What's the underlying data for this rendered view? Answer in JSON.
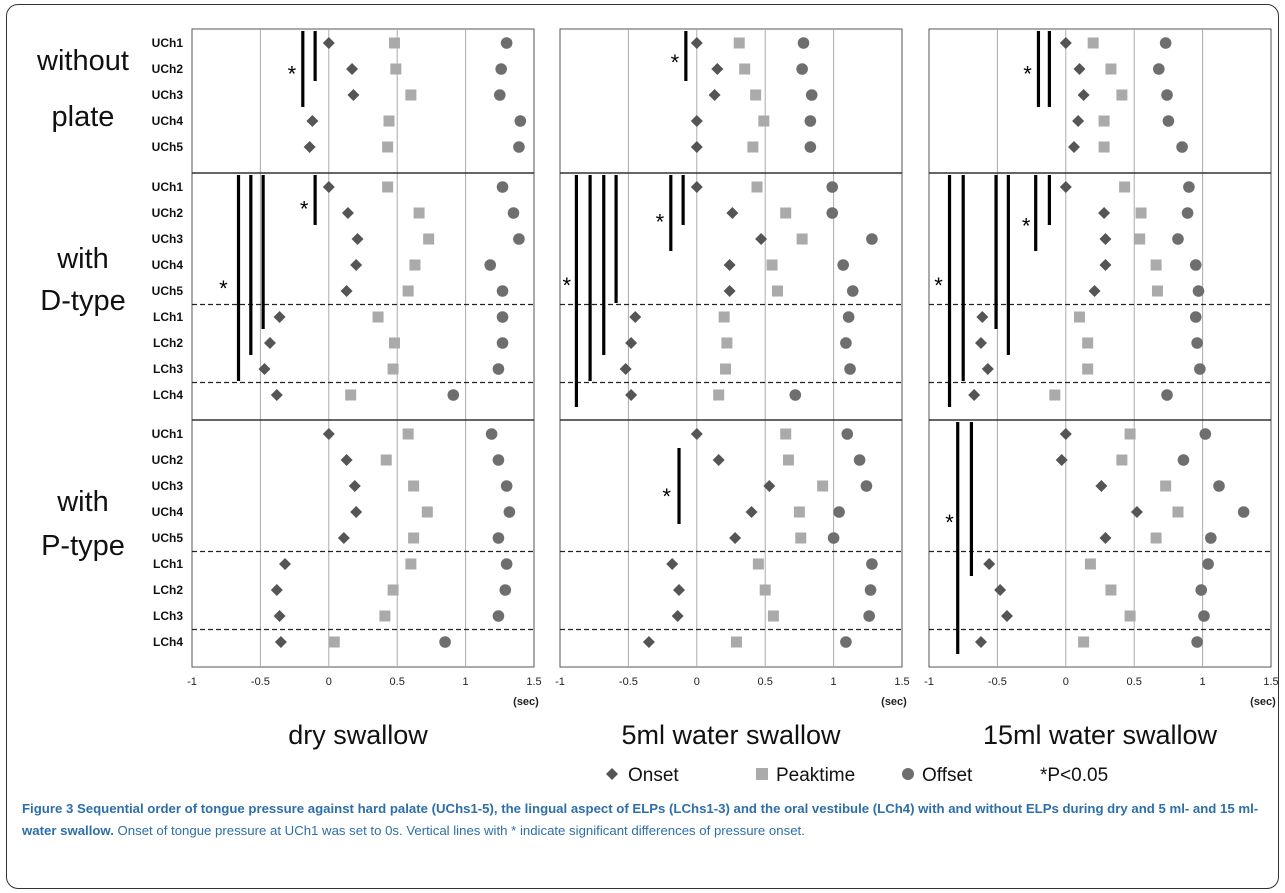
{
  "chart_data": {
    "type": "scatter",
    "x_unit": "(sec)",
    "xlim": [
      -1,
      1.5
    ],
    "x_ticks": [
      "-1",
      "-0.5",
      "0",
      "0.5",
      "1",
      "1.5"
    ],
    "x_tick_values": [
      -1,
      -0.5,
      0,
      0.5,
      1,
      1.5
    ],
    "columns": [
      {
        "id": "dry",
        "title": "dry swallow"
      },
      {
        "id": "w5",
        "title": "5ml water swallow"
      },
      {
        "id": "w15",
        "title": "15ml water swallow"
      }
    ],
    "rows": [
      {
        "id": "without",
        "label": [
          "without",
          "plate"
        ],
        "channels": [
          "UCh1",
          "UCh2",
          "UCh3",
          "UCh4",
          "UCh5"
        ],
        "dashed_after": []
      },
      {
        "id": "dtype",
        "label": [
          "with",
          "D-type"
        ],
        "channels": [
          "UCh1",
          "UCh2",
          "UCh3",
          "UCh4",
          "UCh5",
          "LCh1",
          "LCh2",
          "LCh3",
          "LCh4"
        ],
        "dashed_after": [
          4,
          7
        ]
      },
      {
        "id": "ptype",
        "label": [
          "with",
          "P-type"
        ],
        "channels": [
          "UCh1",
          "UCh2",
          "UCh3",
          "UCh4",
          "UCh5",
          "LCh1",
          "LCh2",
          "LCh3",
          "LCh4"
        ],
        "dashed_after": [
          4,
          7
        ]
      }
    ],
    "series": [
      {
        "name": "Onset",
        "marker": "diamond",
        "color": "#555555"
      },
      {
        "name": "Peaktime",
        "marker": "square",
        "color": "#aaaaaa"
      },
      {
        "name": "Offset",
        "marker": "circle",
        "color": "#6e6e6e"
      }
    ],
    "panels": [
      {
        "row": "without",
        "column": "dry",
        "onset": [
          0,
          0.17,
          0.18,
          -0.12,
          -0.14
        ],
        "peaktime": [
          0.48,
          0.49,
          0.6,
          0.44,
          0.43
        ],
        "offset": [
          1.3,
          1.26,
          1.25,
          1.4,
          1.39
        ],
        "sig_lines": [
          {
            "x": -0.19,
            "from": 0,
            "to": 2
          },
          {
            "x": -0.1,
            "from": 0,
            "to": 1
          }
        ],
        "star_after_x": -0.27,
        "star_row": 1.1
      },
      {
        "row": "without",
        "column": "w5",
        "onset": [
          0,
          0.15,
          0.13,
          0,
          0
        ],
        "peaktime": [
          0.31,
          0.35,
          0.43,
          0.49,
          0.41
        ],
        "offset": [
          0.78,
          0.77,
          0.84,
          0.83,
          0.83
        ],
        "sig_lines": [
          {
            "x": -0.08,
            "from": 0,
            "to": 1
          }
        ],
        "star_after_x": -0.16,
        "star_row": 0.65
      },
      {
        "row": "without",
        "column": "w15",
        "onset": [
          0,
          0.1,
          0.13,
          0.09,
          0.06
        ],
        "peaktime": [
          0.2,
          0.33,
          0.41,
          0.28,
          0.28
        ],
        "offset": [
          0.73,
          0.68,
          0.74,
          0.75,
          0.85
        ],
        "sig_lines": [
          {
            "x": -0.2,
            "from": 0,
            "to": 2
          },
          {
            "x": -0.12,
            "from": 0,
            "to": 2
          }
        ],
        "star_after_x": -0.28,
        "star_row": 1.1
      },
      {
        "row": "dtype",
        "column": "dry",
        "onset": [
          0,
          0.14,
          0.21,
          0.2,
          0.13,
          -0.36,
          -0.43,
          -0.47,
          -0.38
        ],
        "peaktime": [
          0.43,
          0.66,
          0.73,
          0.63,
          0.58,
          0.36,
          0.48,
          0.47,
          0.16
        ],
        "offset": [
          1.27,
          1.35,
          1.39,
          1.18,
          1.27,
          1.27,
          1.27,
          1.24,
          0.91
        ],
        "sig_lines": [
          {
            "x": -0.1,
            "from": 0,
            "to": 1
          },
          {
            "x": -0.48,
            "from": 0,
            "to": 5
          },
          {
            "x": -0.57,
            "from": 0,
            "to": 6
          },
          {
            "x": -0.66,
            "from": 0,
            "to": 7
          }
        ],
        "stars": [
          {
            "x": -0.18,
            "row": 0.75
          },
          {
            "x": -0.77,
            "row": 3.8
          }
        ]
      },
      {
        "row": "dtype",
        "column": "w5",
        "onset": [
          0,
          0.26,
          0.47,
          0.24,
          0.24,
          -0.45,
          -0.48,
          -0.52,
          -0.48
        ],
        "peaktime": [
          0.44,
          0.65,
          0.77,
          0.55,
          0.59,
          0.2,
          0.22,
          0.21,
          0.16
        ],
        "offset": [
          0.99,
          0.99,
          1.28,
          1.07,
          1.14,
          1.11,
          1.09,
          1.12,
          0.72
        ],
        "sig_lines": [
          {
            "x": -0.1,
            "from": 0,
            "to": 1
          },
          {
            "x": -0.19,
            "from": 0,
            "to": 2
          },
          {
            "x": -0.59,
            "from": 0,
            "to": 4
          },
          {
            "x": -0.68,
            "from": 0,
            "to": 6
          },
          {
            "x": -0.78,
            "from": 0,
            "to": 7
          },
          {
            "x": -0.88,
            "from": 0,
            "to": 8
          }
        ],
        "stars": [
          {
            "x": -0.27,
            "row": 1.25
          },
          {
            "x": -0.95,
            "row": 3.7
          }
        ]
      },
      {
        "row": "dtype",
        "column": "w15",
        "onset": [
          0,
          0.28,
          0.29,
          0.29,
          0.21,
          -0.61,
          -0.62,
          -0.57,
          -0.67
        ],
        "peaktime": [
          0.43,
          0.55,
          0.54,
          0.66,
          0.67,
          0.1,
          0.16,
          0.16,
          -0.08
        ],
        "offset": [
          0.9,
          0.89,
          0.82,
          0.95,
          0.97,
          0.95,
          0.96,
          0.98,
          0.74
        ],
        "sig_lines": [
          {
            "x": -0.12,
            "from": 0,
            "to": 1
          },
          {
            "x": -0.22,
            "from": 0,
            "to": 2
          },
          {
            "x": -0.42,
            "from": 0,
            "to": 6
          },
          {
            "x": -0.51,
            "from": 0,
            "to": 5
          },
          {
            "x": -0.75,
            "from": 0,
            "to": 7
          },
          {
            "x": -0.85,
            "from": 0,
            "to": 8
          }
        ],
        "stars": [
          {
            "x": -0.29,
            "row": 1.4
          },
          {
            "x": -0.93,
            "row": 3.7
          }
        ]
      },
      {
        "row": "ptype",
        "column": "dry",
        "onset": [
          0,
          0.13,
          0.19,
          0.2,
          0.11,
          -0.32,
          -0.38,
          -0.36,
          -0.35
        ],
        "peaktime": [
          0.58,
          0.42,
          0.62,
          0.72,
          0.62,
          0.6,
          0.47,
          0.41,
          0.04
        ],
        "offset": [
          1.19,
          1.24,
          1.3,
          1.32,
          1.24,
          1.3,
          1.29,
          1.24,
          0.85
        ],
        "sig_lines": [],
        "stars": []
      },
      {
        "row": "ptype",
        "column": "w5",
        "onset": [
          0,
          0.16,
          0.53,
          0.4,
          0.28,
          -0.18,
          -0.13,
          -0.14,
          -0.35
        ],
        "peaktime": [
          0.65,
          0.67,
          0.92,
          0.75,
          0.76,
          0.45,
          0.5,
          0.56,
          0.29
        ],
        "offset": [
          1.1,
          1.19,
          1.24,
          1.04,
          1.0,
          1.28,
          1.27,
          1.26,
          1.09
        ],
        "sig_lines": [
          {
            "x": -0.13,
            "from": 1,
            "to": 3
          }
        ],
        "stars": [
          {
            "x": -0.22,
            "row": 2.3
          }
        ]
      },
      {
        "row": "ptype",
        "column": "w15",
        "onset": [
          0,
          -0.03,
          0.26,
          0.52,
          0.29,
          -0.56,
          -0.48,
          -0.43,
          -0.62
        ],
        "peaktime": [
          0.47,
          0.41,
          0.73,
          0.82,
          0.66,
          0.18,
          0.33,
          0.47,
          0.13
        ],
        "offset": [
          1.02,
          0.86,
          1.12,
          1.3,
          1.06,
          1.04,
          0.99,
          1.01,
          0.96
        ],
        "sig_lines": [
          {
            "x": -0.69,
            "from": 0,
            "to": 5
          },
          {
            "x": -0.79,
            "from": 0,
            "to": 8
          }
        ],
        "stars": [
          {
            "x": -0.85,
            "row": 3.3
          }
        ]
      }
    ],
    "legend_items": [
      "Onset",
      "Peaktime",
      "Offset"
    ],
    "legend_note": "*P<0.05"
  },
  "caption": {
    "bold": "Figure 3 Sequential order of tongue pressure against hard palate (UChs1-5), the lingual aspect of ELPs (LChs1-3) and the oral vestibule (LCh4) with and without ELPs during dry and 5 ml- and 15 ml-water swallow.",
    "rest": " Onset of tongue pressure at UCh1 was set to 0s. Vertical lines with * indicate significant differences of pressure onset."
  },
  "colors": {
    "onset": "#555555",
    "peaktime": "#aaaaaa",
    "offset": "#6e6e6e",
    "caption": "#2d6fa8"
  }
}
